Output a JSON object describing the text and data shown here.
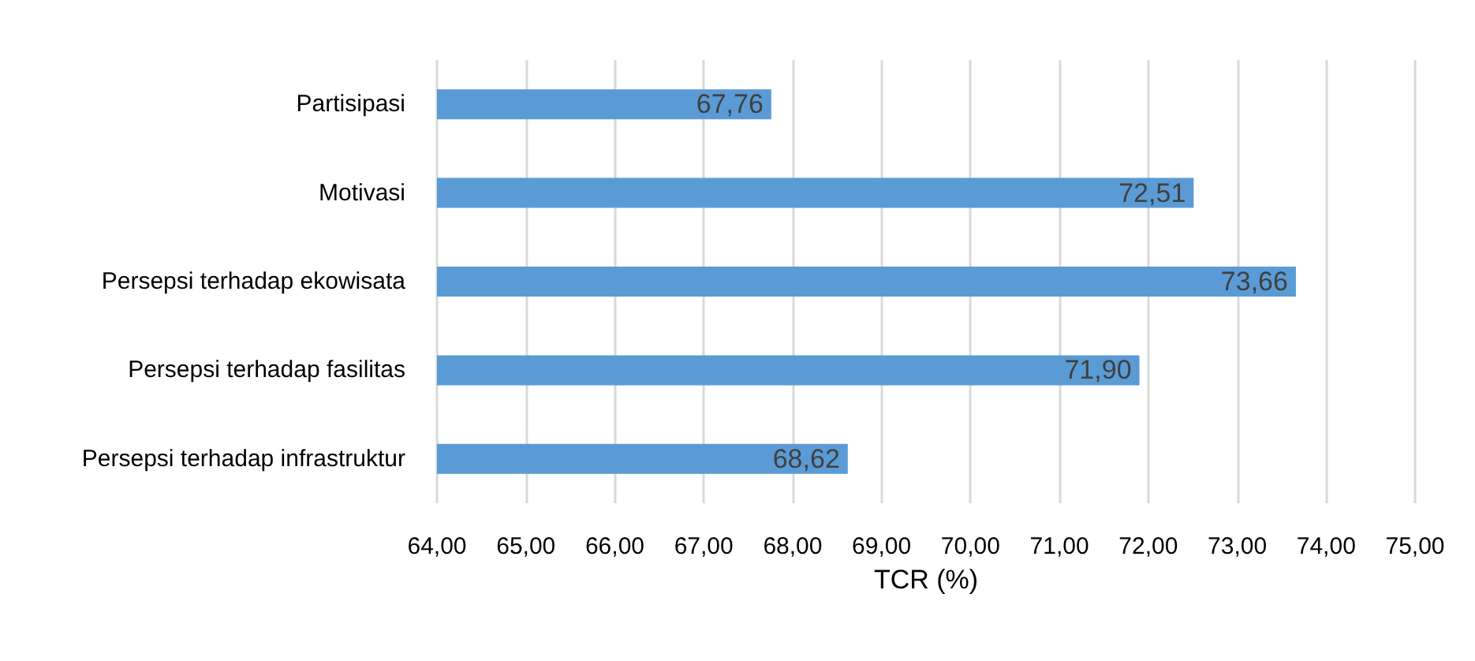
{
  "chart_data": {
    "type": "bar",
    "orientation": "horizontal",
    "xlabel": "TCR (%)",
    "categories": [
      "Partisipasi",
      "Motivasi",
      "Persepsi terhadap ekowisata",
      "Persepsi terhadap fasilitas",
      "Persepsi terhadap infrastruktur"
    ],
    "values": [
      67.76,
      72.51,
      73.66,
      71.9,
      68.62
    ],
    "value_labels": [
      "67,76",
      "72,51",
      "73,66",
      "71,90",
      "68,62"
    ],
    "color": "#5b9bd5",
    "xlim": [
      64,
      75
    ],
    "xticks": [
      {
        "value": 64,
        "label": "64,00"
      },
      {
        "value": 65,
        "label": "65,00"
      },
      {
        "value": 66,
        "label": "66,00"
      },
      {
        "value": 67,
        "label": "67,00"
      },
      {
        "value": 68,
        "label": "68,00"
      },
      {
        "value": 69,
        "label": "69,00"
      },
      {
        "value": 70,
        "label": "70,00"
      },
      {
        "value": 71,
        "label": "71,00"
      },
      {
        "value": 72,
        "label": "72,00"
      },
      {
        "value": 73,
        "label": "73,00"
      },
      {
        "value": 74,
        "label": "74,00"
      },
      {
        "value": 75,
        "label": "75,00"
      }
    ],
    "grid": "x"
  }
}
